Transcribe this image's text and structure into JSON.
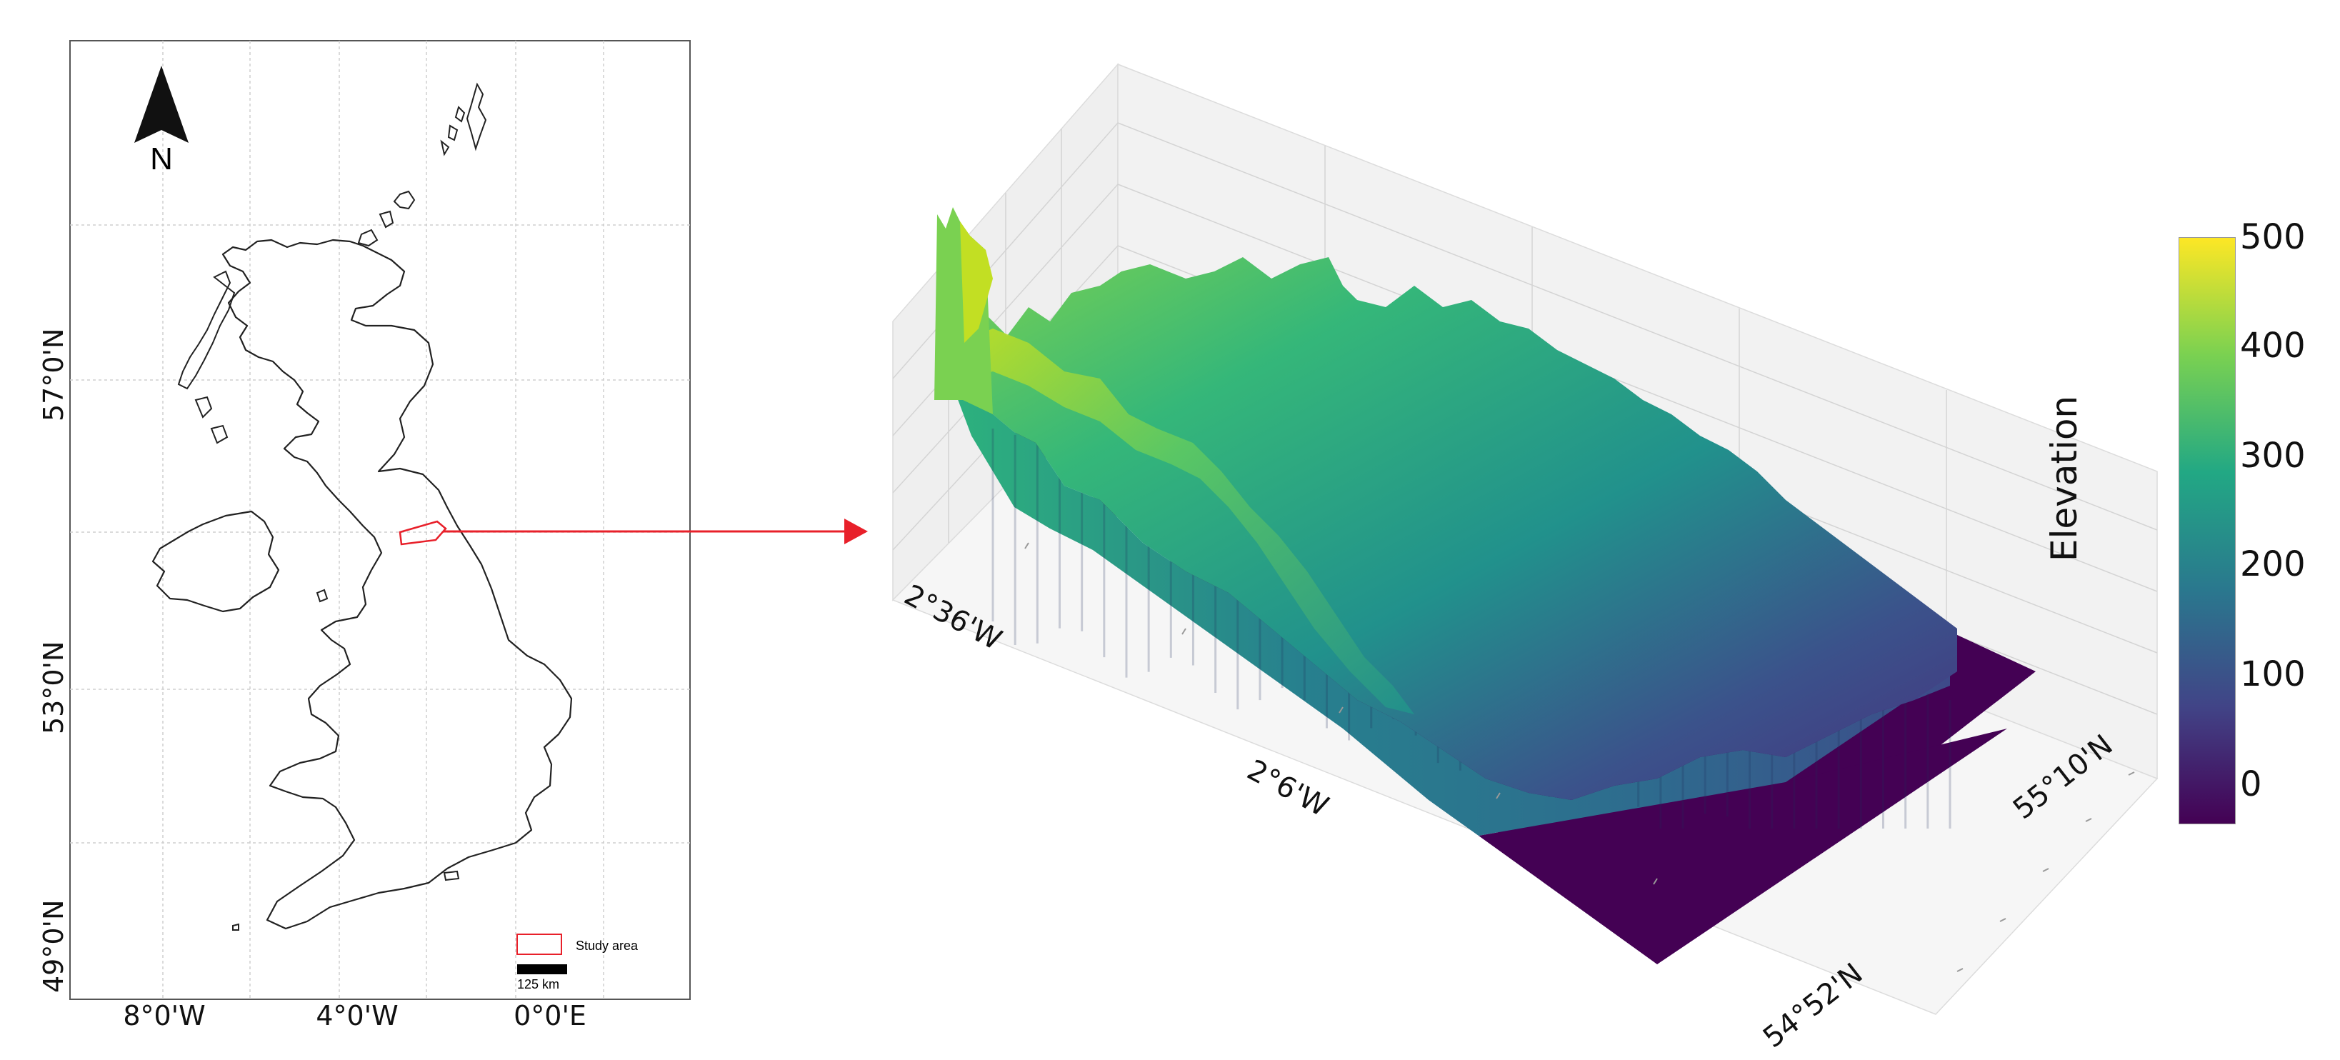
{
  "map": {
    "north_label": "N",
    "lat_labels": [
      "57°0'N",
      "53°0'N",
      "49°0'N"
    ],
    "lon_labels": [
      "8°0'W",
      "4°0'W",
      "0°0'E"
    ],
    "legend_label": "Study area",
    "scale_label": "125 km",
    "colors": {
      "outline": "#222222",
      "study_area": "#e8202a",
      "arrow": "#e8202a",
      "grid": "#c8c8c8"
    }
  },
  "surface": {
    "x_labels": [
      "2°36'W",
      "2°6'W"
    ],
    "y_labels": [
      "55°10'N",
      "54°52'N"
    ],
    "z_title": "Elevation",
    "colors": {
      "pane": "#f0f0f0",
      "grid": "#d6d6d6",
      "base": "#440154"
    }
  },
  "colorbar": {
    "ticks": [
      "500",
      "400",
      "300",
      "200",
      "100",
      "0"
    ],
    "colors": [
      "#fde725",
      "#7ad151",
      "#22a884",
      "#2a788e",
      "#414487",
      "#440154"
    ]
  },
  "chart_data": {
    "type": "surface3d",
    "title": "",
    "xlabel": "",
    "ylabel": "",
    "zlabel": "Elevation",
    "x_ticks": [
      "2°36'W",
      "2°6'W"
    ],
    "y_ticks": [
      "54°52'N",
      "55°10'N"
    ],
    "z_range": [
      -50,
      500
    ],
    "colormap": "viridis"
  }
}
